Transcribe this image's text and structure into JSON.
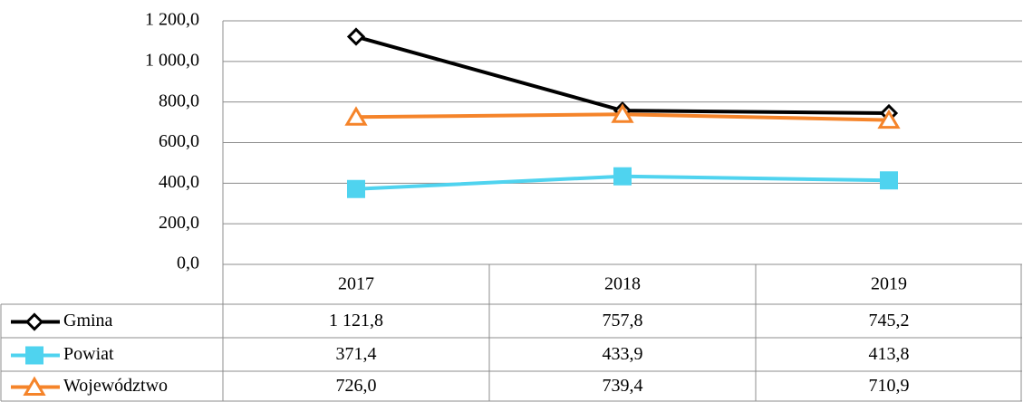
{
  "chart_data": {
    "type": "line",
    "categories": [
      "2017",
      "2018",
      "2019"
    ],
    "series": [
      {
        "name": "Gmina",
        "color": "#000000",
        "marker": "diamond",
        "values": [
          1121.8,
          757.8,
          745.2
        ],
        "value_labels": [
          "1 121,8",
          "757,8",
          "745,2"
        ]
      },
      {
        "name": "Powiat",
        "color": "#4fd3ef",
        "marker": "square",
        "values": [
          371.4,
          433.9,
          413.8
        ],
        "value_labels": [
          "371,4",
          "433,9",
          "413,8"
        ]
      },
      {
        "name": "Województwo",
        "color": "#f5842a",
        "marker": "triangle",
        "values": [
          726.0,
          739.4,
          710.9
        ],
        "value_labels": [
          "726,0",
          "739,4",
          "710,9"
        ]
      }
    ],
    "ylim": [
      0,
      1200
    ],
    "yticks": [
      {
        "value": 0,
        "label": "0,0"
      },
      {
        "value": 200,
        "label": "200,0"
      },
      {
        "value": 400,
        "label": "400,0"
      },
      {
        "value": 600,
        "label": "600,0"
      },
      {
        "value": 800,
        "label": "800,0"
      },
      {
        "value": 1000,
        "label": "1 000,0"
      },
      {
        "value": 1200,
        "label": "1 200,0"
      }
    ],
    "grid": true
  }
}
